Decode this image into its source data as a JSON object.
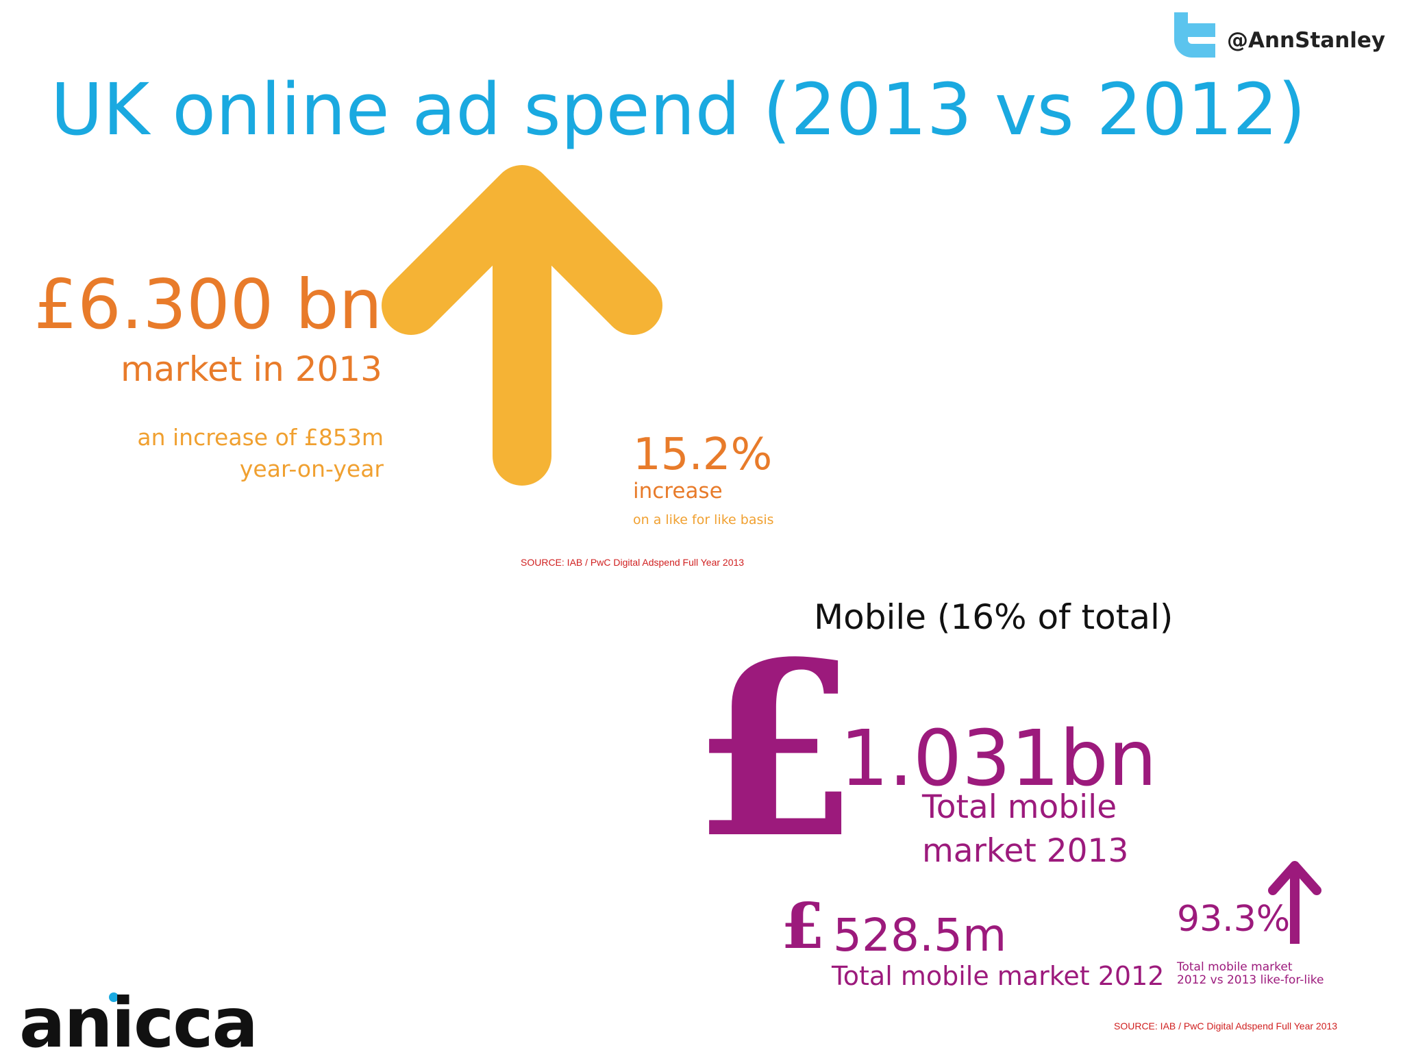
{
  "header": {
    "handle": "@AnnStanley",
    "title": "UK online ad spend (2013 vs 2012)"
  },
  "total": {
    "amount": "£6.300 bn",
    "caption": "market in 2013",
    "increase_line1": "an increase of £853m",
    "increase_line2": "year-on-year",
    "percent": "15.2%",
    "percent_caption": "increase",
    "percent_note": "on a like for like basis",
    "source": "SOURCE: IAB / PwC Digital Adspend Full Year 2013"
  },
  "mobile": {
    "heading": "Mobile (16% of total)",
    "pound": "£",
    "amount_2013": "1.031bn",
    "caption_2013_line1": "Total mobile",
    "caption_2013_line2": "market 2013",
    "pound_small": "£",
    "amount_2012": "528.5m",
    "caption_2012": "Total mobile market 2012",
    "percent": "93.3%",
    "percent_note_line1": "Total mobile market",
    "percent_note_line2": "2012 vs 2013 like-for-like",
    "source": "SOURCE: IAB / PwC Digital Adspend Full Year 2013"
  },
  "footer": {
    "logo": "anicca"
  }
}
